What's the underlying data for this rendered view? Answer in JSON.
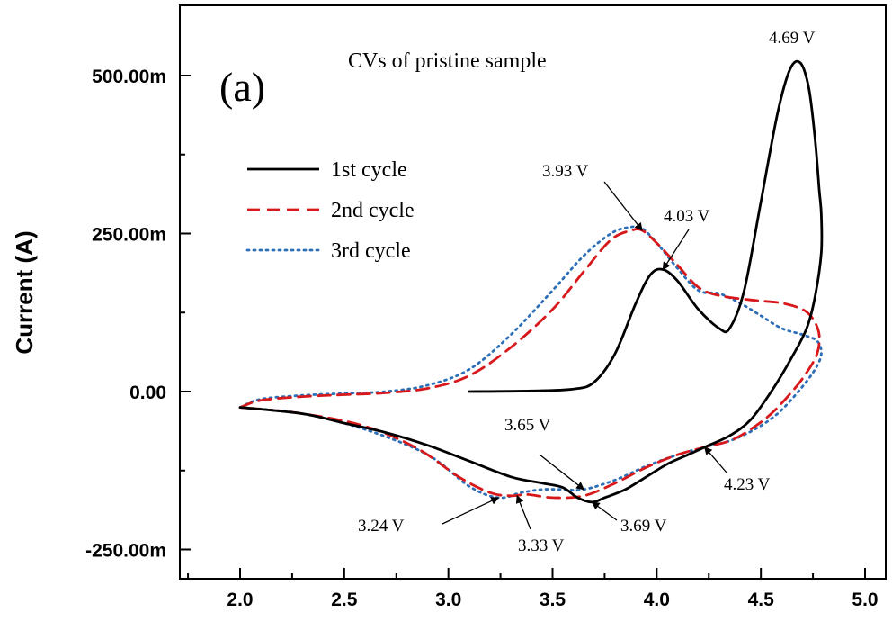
{
  "chart_data": {
    "type": "line",
    "panel_label": "(a)",
    "title": "CVs of pristine sample",
    "xlabel": "",
    "ylabel": "Current (A)",
    "xlim": [
      1.7,
      5.0
    ],
    "ylim": [
      -0.28,
      0.6
    ],
    "x_ticks": [
      {
        "value": 2.0,
        "label": "2.0"
      },
      {
        "value": 2.5,
        "label": "2.5"
      },
      {
        "value": 3.0,
        "label": "3.0"
      },
      {
        "value": 3.5,
        "label": "3.5"
      },
      {
        "value": 4.0,
        "label": "4.0"
      },
      {
        "value": 4.5,
        "label": "4.5"
      },
      {
        "value": 5.0,
        "label": "5.0"
      }
    ],
    "y_ticks": [
      {
        "value": 0.5,
        "label": "500.00m"
      },
      {
        "value": 0.25,
        "label": "250.00m"
      },
      {
        "value": 0.0,
        "label": "0.00"
      },
      {
        "value": -0.25,
        "label": "-250.00m"
      }
    ],
    "grid": false,
    "legend_position": "top-left",
    "series": [
      {
        "name": "1st cycle",
        "color": "#000000",
        "style": "solid",
        "points": [
          [
            3.1,
            0.0
          ],
          [
            3.4,
            0.001
          ],
          [
            3.6,
            0.004
          ],
          [
            3.7,
            0.015
          ],
          [
            3.8,
            0.06
          ],
          [
            3.9,
            0.14
          ],
          [
            3.97,
            0.185
          ],
          [
            4.03,
            0.193
          ],
          [
            4.1,
            0.175
          ],
          [
            4.2,
            0.13
          ],
          [
            4.3,
            0.1
          ],
          [
            4.35,
            0.1
          ],
          [
            4.42,
            0.16
          ],
          [
            4.5,
            0.3
          ],
          [
            4.58,
            0.44
          ],
          [
            4.64,
            0.51
          ],
          [
            4.69,
            0.52
          ],
          [
            4.73,
            0.48
          ],
          [
            4.76,
            0.4
          ],
          [
            4.78,
            0.32
          ],
          [
            4.79,
            0.28
          ],
          [
            4.79,
            0.22
          ],
          [
            4.76,
            0.15
          ],
          [
            4.72,
            0.1
          ],
          [
            4.65,
            0.055
          ],
          [
            4.55,
            0.0
          ],
          [
            4.45,
            -0.045
          ],
          [
            4.35,
            -0.07
          ],
          [
            4.25,
            -0.085
          ],
          [
            4.15,
            -0.1
          ],
          [
            4.05,
            -0.115
          ],
          [
            3.95,
            -0.135
          ],
          [
            3.85,
            -0.155
          ],
          [
            3.75,
            -0.168
          ],
          [
            3.69,
            -0.175
          ],
          [
            3.62,
            -0.168
          ],
          [
            3.55,
            -0.152
          ],
          [
            3.45,
            -0.145
          ],
          [
            3.3,
            -0.135
          ],
          [
            3.1,
            -0.11
          ],
          [
            2.9,
            -0.085
          ],
          [
            2.7,
            -0.065
          ],
          [
            2.5,
            -0.05
          ],
          [
            2.3,
            -0.035
          ],
          [
            2.0,
            -0.025
          ]
        ]
      },
      {
        "name": "2nd cycle",
        "color": "#d7191c",
        "style": "dashed",
        "points": [
          [
            2.0,
            -0.025
          ],
          [
            2.1,
            -0.014
          ],
          [
            2.3,
            -0.008
          ],
          [
            2.5,
            -0.005
          ],
          [
            2.7,
            -0.002
          ],
          [
            2.9,
            0.005
          ],
          [
            3.1,
            0.025
          ],
          [
            3.3,
            0.07
          ],
          [
            3.5,
            0.13
          ],
          [
            3.65,
            0.19
          ],
          [
            3.78,
            0.24
          ],
          [
            3.88,
            0.255
          ],
          [
            3.93,
            0.255
          ],
          [
            4.0,
            0.235
          ],
          [
            4.1,
            0.2
          ],
          [
            4.2,
            0.165
          ],
          [
            4.3,
            0.152
          ],
          [
            4.45,
            0.145
          ],
          [
            4.6,
            0.14
          ],
          [
            4.7,
            0.13
          ],
          [
            4.75,
            0.115
          ],
          [
            4.78,
            0.09
          ],
          [
            4.77,
            0.06
          ],
          [
            4.72,
            0.03
          ],
          [
            4.65,
            0.0
          ],
          [
            4.55,
            -0.035
          ],
          [
            4.45,
            -0.06
          ],
          [
            4.35,
            -0.078
          ],
          [
            4.23,
            -0.088
          ],
          [
            4.1,
            -0.1
          ],
          [
            3.95,
            -0.12
          ],
          [
            3.8,
            -0.145
          ],
          [
            3.65,
            -0.165
          ],
          [
            3.5,
            -0.168
          ],
          [
            3.38,
            -0.163
          ],
          [
            3.3,
            -0.165
          ],
          [
            3.2,
            -0.16
          ],
          [
            3.05,
            -0.135
          ],
          [
            2.85,
            -0.09
          ],
          [
            2.6,
            -0.055
          ],
          [
            2.3,
            -0.035
          ],
          [
            2.0,
            -0.025
          ]
        ]
      },
      {
        "name": "3rd cycle",
        "color": "#2c6fb7",
        "style": "dotted",
        "points": [
          [
            2.0,
            -0.025
          ],
          [
            2.1,
            -0.012
          ],
          [
            2.3,
            -0.006
          ],
          [
            2.5,
            -0.003
          ],
          [
            2.7,
            0.0
          ],
          [
            2.9,
            0.01
          ],
          [
            3.1,
            0.035
          ],
          [
            3.3,
            0.09
          ],
          [
            3.5,
            0.16
          ],
          [
            3.65,
            0.215
          ],
          [
            3.78,
            0.25
          ],
          [
            3.87,
            0.26
          ],
          [
            3.93,
            0.258
          ],
          [
            4.0,
            0.235
          ],
          [
            4.1,
            0.195
          ],
          [
            4.2,
            0.16
          ],
          [
            4.3,
            0.155
          ],
          [
            4.4,
            0.14
          ],
          [
            4.5,
            0.12
          ],
          [
            4.6,
            0.1
          ],
          [
            4.7,
            0.09
          ],
          [
            4.77,
            0.08
          ],
          [
            4.79,
            0.06
          ],
          [
            4.76,
            0.035
          ],
          [
            4.68,
            0.0
          ],
          [
            4.58,
            -0.035
          ],
          [
            4.47,
            -0.06
          ],
          [
            4.35,
            -0.078
          ],
          [
            4.23,
            -0.088
          ],
          [
            4.1,
            -0.1
          ],
          [
            3.95,
            -0.118
          ],
          [
            3.8,
            -0.14
          ],
          [
            3.65,
            -0.155
          ],
          [
            3.55,
            -0.155
          ],
          [
            3.45,
            -0.155
          ],
          [
            3.35,
            -0.16
          ],
          [
            3.24,
            -0.168
          ],
          [
            3.1,
            -0.15
          ],
          [
            2.9,
            -0.1
          ],
          [
            2.6,
            -0.06
          ],
          [
            2.3,
            -0.035
          ],
          [
            2.0,
            -0.025
          ]
        ]
      }
    ],
    "annotations": [
      {
        "text": "4.69 V",
        "x": 4.69,
        "y": 0.52
      },
      {
        "text": "3.93 V",
        "x": 3.93,
        "y": 0.255
      },
      {
        "text": "4.03 V",
        "x": 4.03,
        "y": 0.193
      },
      {
        "text": "3.65 V",
        "x": 3.65,
        "y": -0.155
      },
      {
        "text": "4.23 V",
        "x": 4.23,
        "y": -0.088
      },
      {
        "text": "3.24 V",
        "x": 3.24,
        "y": -0.168
      },
      {
        "text": "3.33 V",
        "x": 3.33,
        "y": -0.165
      },
      {
        "text": "3.69 V",
        "x": 3.69,
        "y": -0.175
      }
    ]
  }
}
